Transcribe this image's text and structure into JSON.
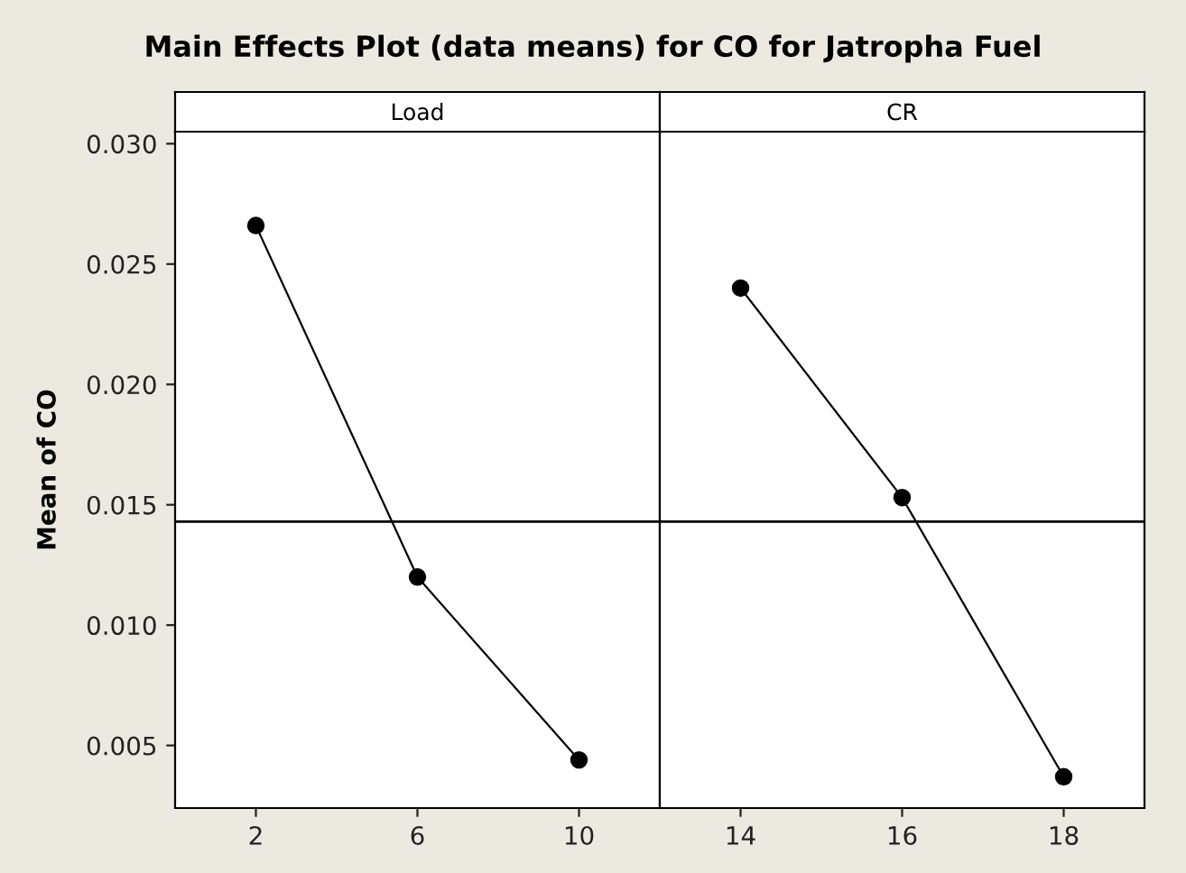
{
  "chart_data": [
    {
      "type": "line",
      "title": "Main Effects Plot (data means) for CO for Jatropha Fuel",
      "subtitle": "Load",
      "ylabel": "Mean of CO",
      "categories": [
        "2",
        "6",
        "10"
      ],
      "series": [
        {
          "color": "#000000",
          "values": [
            0.0266,
            0.012,
            0.0044
          ]
        }
      ],
      "ylim": [
        0.0024,
        0.0305
      ],
      "yticks": [
        0.005,
        {
          "value": 0.01,
          "label": "0.010"
        },
        0.015,
        {
          "value": 0.02,
          "label": "0.020"
        },
        0.025,
        {
          "value": 0.03,
          "label": "0.030"
        }
      ],
      "ref_lines": [
        {
          "axis": "y",
          "value": 0.0143,
          "color": "#000000"
        }
      ],
      "marker": "circle",
      "line_style": "solid",
      "grid": false,
      "legend": false
    },
    {
      "type": "line",
      "subtitle": "CR",
      "categories": [
        "14",
        "16",
        "18"
      ],
      "series": [
        {
          "color": "#000000",
          "values": [
            0.024,
            0.0153,
            0.0037
          ]
        }
      ],
      "ylim": [
        0.0024,
        0.0305
      ],
      "ref_lines": [
        {
          "axis": "y",
          "value": 0.0143,
          "color": "#000000"
        }
      ],
      "marker": "circle",
      "line_style": "solid",
      "grid": false,
      "legend": false,
      "tick_labels": "x"
    }
  ]
}
